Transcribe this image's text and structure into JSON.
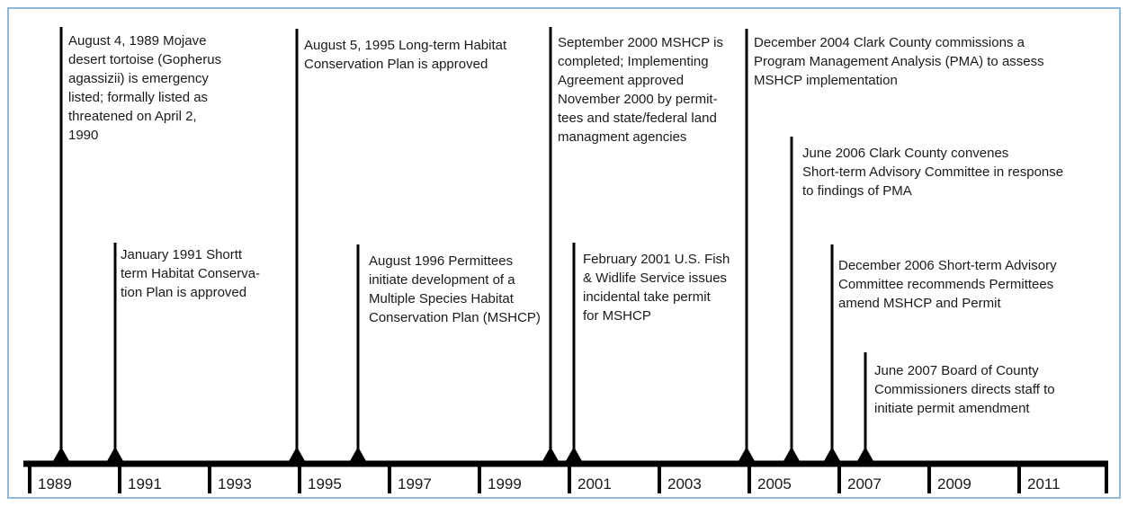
{
  "events": [
    {
      "lines": [
        "August 4, 1989 Mojave",
        "desert tortoise (Gopherus",
        "agassizii) is emergency",
        "listed; formally listed as",
        "threatened on April 2,",
        "1990"
      ]
    },
    {
      "lines": [
        "January 1991 Shortt",
        "term Habitat Conserva-",
        "tion Plan is approved"
      ]
    },
    {
      "lines": [
        "August 5, 1995 Long-term Habitat",
        "Conservation Plan is approved"
      ]
    },
    {
      "lines": [
        "August 1996 Permittees",
        "initiate development of a",
        "Multiple Species Habitat",
        "Conservation Plan (MSHCP)"
      ]
    },
    {
      "lines": [
        "September 2000 MSHCP is",
        "completed; Implementing",
        "Agreement approved",
        "November 2000 by permit-",
        "tees and state/federal land",
        "managment agencies"
      ]
    },
    {
      "lines": [
        "February 2001 U.S. Fish",
        "& Widlife Service issues",
        "incidental take permit",
        "for MSHCP"
      ]
    },
    {
      "lines": [
        "December 2004 Clark County commissions a",
        "Program Management Analysis (PMA) to assess",
        "MSHCP implementation"
      ]
    },
    {
      "lines": [
        "June 2006 Clark County convenes",
        "Short-term Advisory Committee in response",
        "to findings of PMA"
      ]
    },
    {
      "lines": [
        "December 2006 Short-term Advisory",
        "Committee recommends Permittees",
        "amend MSHCP and Permit"
      ]
    },
    {
      "lines": [
        "June 2007 Board of County",
        "Commissioners directs staff to",
        "initiate permit amendment"
      ]
    }
  ],
  "years": [
    "1989",
    "1991",
    "1993",
    "1995",
    "1997",
    "1999",
    "2001",
    "2003",
    "2005",
    "2007",
    "2009",
    "2011"
  ]
}
